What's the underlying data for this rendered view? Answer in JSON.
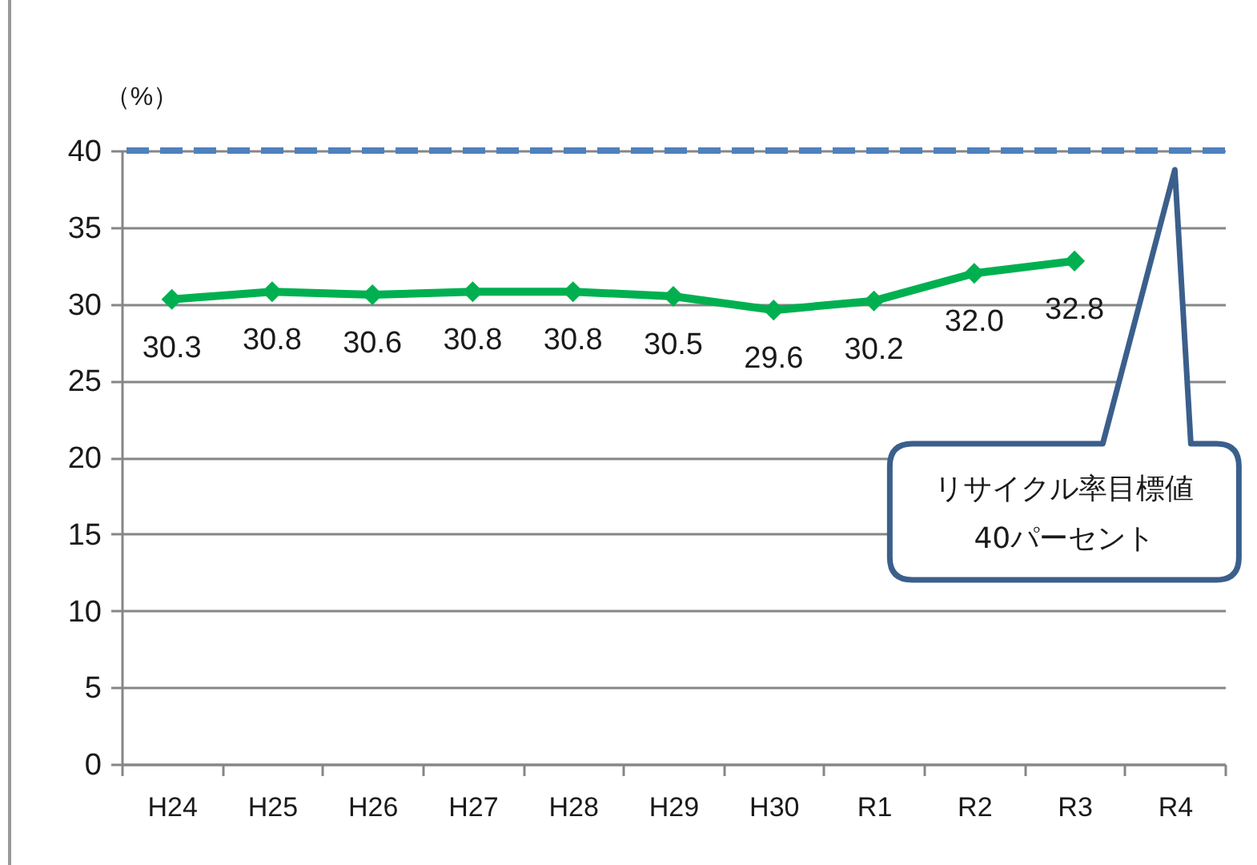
{
  "chart_data": {
    "type": "line",
    "categories": [
      "H24",
      "H25",
      "H26",
      "H27",
      "H28",
      "H29",
      "H30",
      "R1",
      "R2",
      "R3",
      "R4"
    ],
    "series": [
      {
        "color": "#00b050",
        "values": [
          30.3,
          30.8,
          30.6,
          30.8,
          30.8,
          30.5,
          29.6,
          30.2,
          32.0,
          32.8,
          null
        ],
        "value_labels": [
          "30.3",
          "30.8",
          "30.6",
          "30.8",
          "30.8",
          "30.5",
          "29.6",
          "30.2",
          "32.0",
          "32.8",
          null
        ]
      }
    ],
    "ylabel": "（%）",
    "ylim": [
      0,
      40
    ],
    "yticks": [
      0,
      5,
      10,
      15,
      20,
      25,
      30,
      35,
      40
    ],
    "grid": "y",
    "marker": "diamond",
    "ref_lines": [
      {
        "axis": "y",
        "value": 40,
        "color": "#4f81bd",
        "line_style": "dashed"
      }
    ],
    "annotations": [
      "リサイクル率目標値\n40パーセント"
    ]
  }
}
